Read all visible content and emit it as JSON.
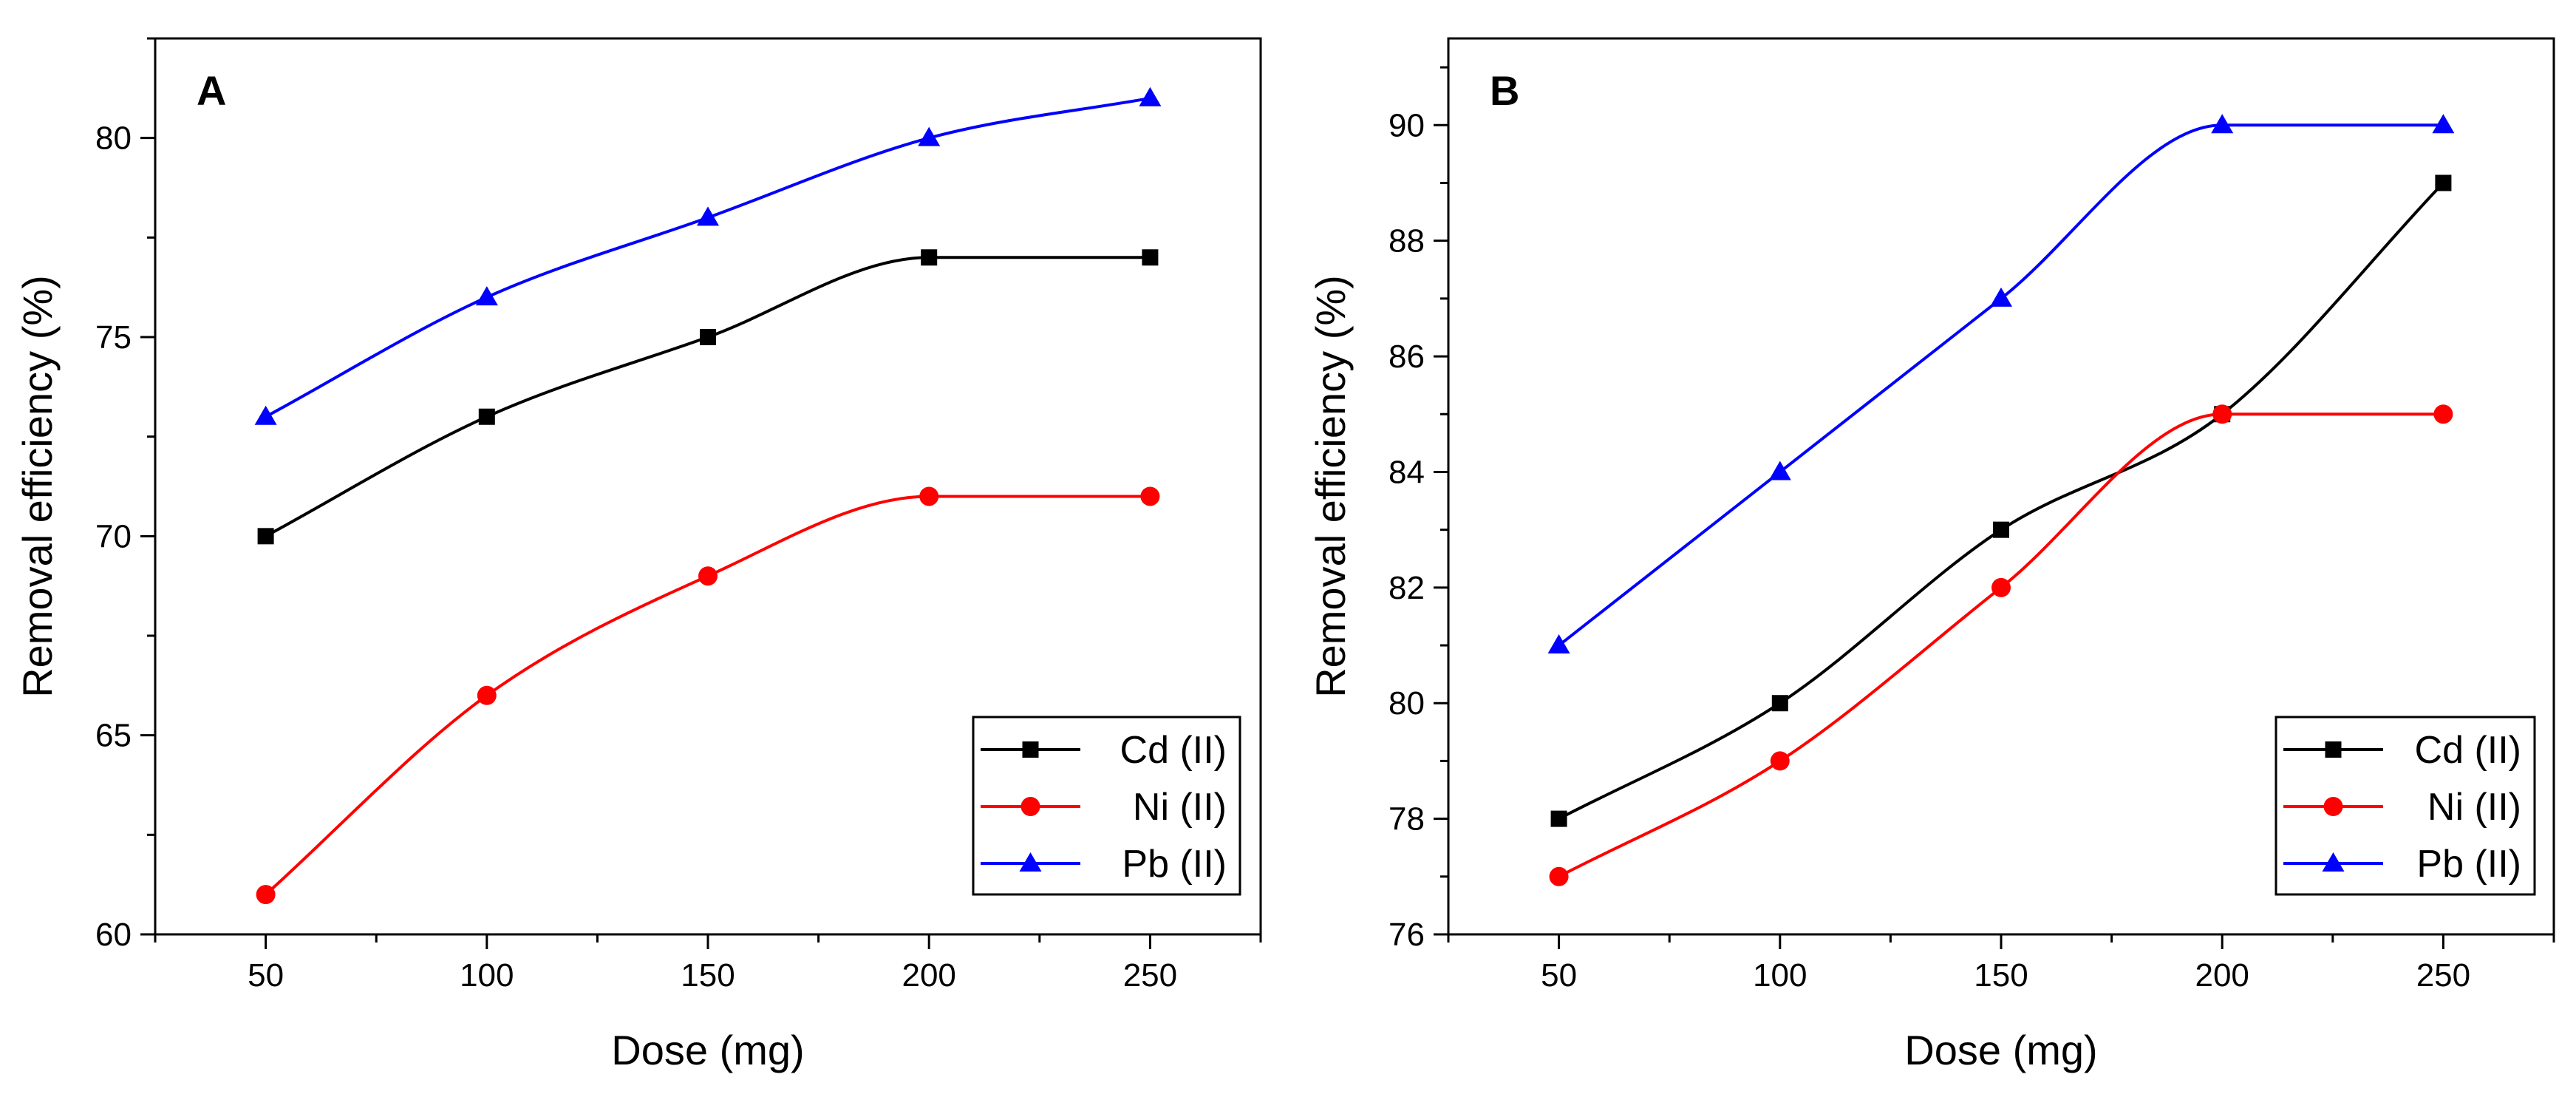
{
  "chart_data": [
    {
      "type": "line",
      "panel_label": "A",
      "title": "",
      "xlabel": "Dose (mg)",
      "ylabel": "Removal efficiency (%)",
      "xlim": [
        25,
        275
      ],
      "ylim": [
        60,
        82.5
      ],
      "xticks": [
        50,
        100,
        150,
        200,
        250
      ],
      "xtick_labels": [
        "50",
        "100",
        "150",
        "200",
        "250"
      ],
      "yticks": [
        60,
        65,
        70,
        75,
        80
      ],
      "ytick_labels": [
        "60",
        "65",
        "70",
        "75",
        "80"
      ],
      "grid": false,
      "legend_position": "bottom-right",
      "x": [
        50,
        100,
        150,
        200,
        250
      ],
      "series": [
        {
          "name": "Cd (II)",
          "color": "#000000",
          "marker": "square",
          "values": [
            70,
            73,
            75,
            77,
            77
          ]
        },
        {
          "name": "Ni (II)",
          "color": "#ff0000",
          "marker": "circle",
          "values": [
            61,
            66,
            69,
            71,
            71
          ]
        },
        {
          "name": "Pb (II)",
          "color": "#0000ff",
          "marker": "triangle",
          "values": [
            73,
            76,
            78,
            80,
            81
          ]
        }
      ]
    },
    {
      "type": "line",
      "panel_label": "B",
      "title": "",
      "xlabel": "Dose (mg)",
      "ylabel": "Removal efficiency (%)",
      "xlim": [
        25,
        275
      ],
      "ylim": [
        76,
        91.5
      ],
      "xticks": [
        50,
        100,
        150,
        200,
        250
      ],
      "xtick_labels": [
        "50",
        "100",
        "150",
        "200",
        "250"
      ],
      "yticks": [
        76,
        78,
        80,
        82,
        84,
        86,
        88,
        90
      ],
      "ytick_labels": [
        "76",
        "78",
        "80",
        "82",
        "84",
        "86",
        "88",
        "90"
      ],
      "grid": false,
      "legend_position": "bottom-right",
      "x": [
        50,
        100,
        150,
        200,
        250
      ],
      "series": [
        {
          "name": "Cd (II)",
          "color": "#000000",
          "marker": "square",
          "values": [
            78,
            80,
            83,
            85,
            89
          ]
        },
        {
          "name": "Ni (II)",
          "color": "#ff0000",
          "marker": "circle",
          "values": [
            77,
            79,
            82,
            85,
            85
          ]
        },
        {
          "name": "Pb (II)",
          "color": "#0000ff",
          "marker": "triangle",
          "values": [
            81,
            84,
            87,
            90,
            90
          ]
        }
      ]
    }
  ]
}
